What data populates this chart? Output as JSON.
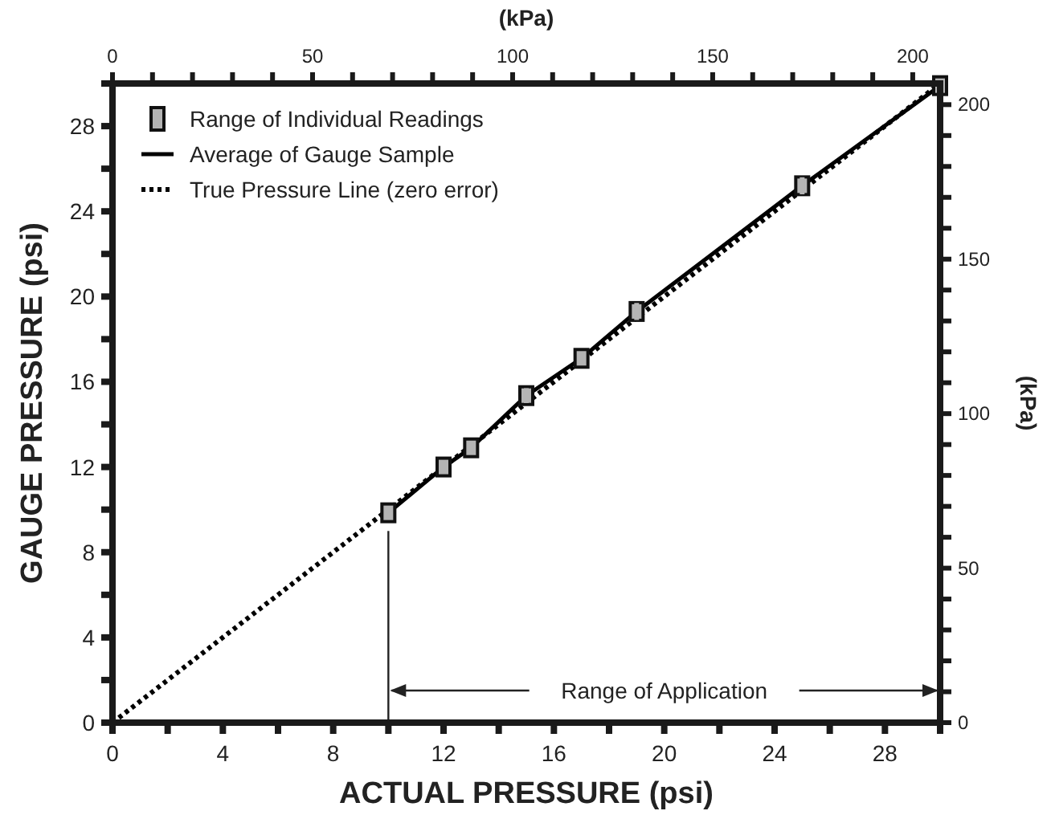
{
  "chart_data": {
    "type": "line",
    "xlabel": "ACTUAL PRESSURE (psi)",
    "ylabel": "GAUGE PRESSURE (psi)",
    "x2label": "(kPa)",
    "y2label": "(kPa)",
    "xlim": [
      0,
      30
    ],
    "ylim": [
      0,
      30
    ],
    "x2lim": [
      0,
      206.84
    ],
    "y2lim": [
      0,
      206.84
    ],
    "xticks": [
      0,
      {
        "value": 2,
        "label": null
      },
      4,
      {
        "value": 6,
        "label": null
      },
      8,
      {
        "value": 10,
        "label": null
      },
      12,
      {
        "value": 14,
        "label": null
      },
      16,
      {
        "value": 18,
        "label": null
      },
      20,
      {
        "value": 22,
        "label": null
      },
      24,
      {
        "value": 26,
        "label": null
      },
      28,
      {
        "value": 30,
        "label": null
      }
    ],
    "yticks": [
      0,
      {
        "value": 2,
        "label": null
      },
      4,
      {
        "value": 6,
        "label": null
      },
      8,
      {
        "value": 10,
        "label": null
      },
      12,
      {
        "value": 14,
        "label": null
      },
      16,
      {
        "value": 18,
        "label": null
      },
      20,
      {
        "value": 22,
        "label": null
      },
      24,
      {
        "value": 26,
        "label": null
      },
      28,
      {
        "value": 30,
        "label": null
      }
    ],
    "x2ticks": [
      0,
      {
        "value": 10,
        "label": null
      },
      {
        "value": 20,
        "label": null
      },
      {
        "value": 30,
        "label": null
      },
      {
        "value": 40,
        "label": null
      },
      50,
      {
        "value": 60,
        "label": null
      },
      {
        "value": 70,
        "label": null
      },
      {
        "value": 80,
        "label": null
      },
      {
        "value": 90,
        "label": null
      },
      100,
      {
        "value": 110,
        "label": null
      },
      {
        "value": 120,
        "label": null
      },
      {
        "value": 130,
        "label": null
      },
      {
        "value": 140,
        "label": null
      },
      150,
      {
        "value": 160,
        "label": null
      },
      {
        "value": 170,
        "label": null
      },
      {
        "value": 180,
        "label": null
      },
      {
        "value": 190,
        "label": null
      },
      200
    ],
    "y2ticks": [
      0,
      {
        "value": 10,
        "label": null
      },
      {
        "value": 20,
        "label": null
      },
      {
        "value": 30,
        "label": null
      },
      {
        "value": 40,
        "label": null
      },
      50,
      {
        "value": 60,
        "label": null
      },
      {
        "value": 70,
        "label": null
      },
      {
        "value": 80,
        "label": null
      },
      {
        "value": 90,
        "label": null
      },
      100,
      {
        "value": 110,
        "label": null
      },
      {
        "value": 120,
        "label": null
      },
      {
        "value": 130,
        "label": null
      },
      {
        "value": 140,
        "label": null
      },
      150,
      {
        "value": 160,
        "label": null
      },
      {
        "value": 170,
        "label": null
      },
      {
        "value": 180,
        "label": null
      },
      {
        "value": 190,
        "label": null
      },
      200
    ],
    "legend": "top left",
    "grid": false,
    "series": [
      {
        "name": "Range of Individual Readings",
        "type": "scatter",
        "marker": "square",
        "color": "#b4b4b4",
        "x": [
          10,
          12,
          13,
          15,
          17,
          19,
          25,
          30
        ],
        "values": [
          9.85,
          12,
          12.9,
          15.35,
          17.1,
          19.3,
          25.2,
          29.9
        ],
        "errors": [
          [
            9.6,
            10.1
          ],
          [
            11.7,
            12.3
          ],
          [
            12.6,
            13.2
          ],
          [
            15,
            15.7
          ],
          [
            16.8,
            17.4
          ],
          [
            18.9,
            19.7
          ],
          [
            24.8,
            25.6
          ],
          [
            29.8,
            30
          ]
        ]
      },
      {
        "name": "Average of Gauge Sample",
        "line_style": "solid",
        "marker": "none",
        "color": "#000000",
        "x": [
          10,
          12,
          13,
          15,
          17,
          19,
          25,
          30
        ],
        "values": [
          9.85,
          12,
          12.9,
          15.35,
          17.1,
          19.3,
          25.2,
          29.9
        ]
      },
      {
        "name": "True Pressure Line (zero error)",
        "line_style": "dotted",
        "marker": "none",
        "color": "#000000",
        "x": [
          0,
          30
        ],
        "values": [
          0,
          30
        ]
      }
    ],
    "ref_lines": [
      {
        "axis": "x",
        "value": 10,
        "color": "#222222"
      }
    ],
    "annotations": [
      "Range of Application"
    ]
  }
}
